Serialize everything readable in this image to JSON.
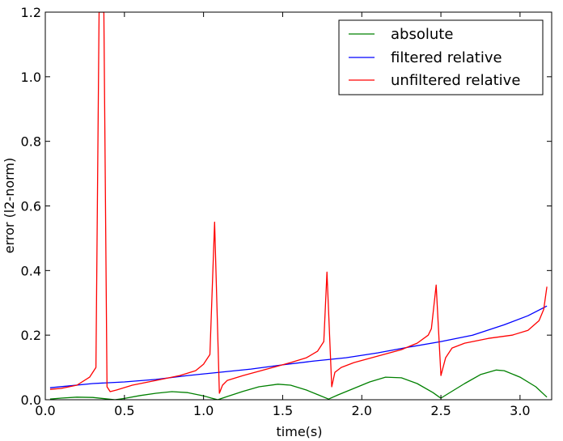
{
  "chart_data": {
    "type": "line",
    "title": "",
    "xlabel": "time(s)",
    "ylabel": "error (l2-norm)",
    "xlim": [
      0.0,
      3.2
    ],
    "ylim": [
      0.0,
      1.2
    ],
    "xticks": [
      "0.0",
      "0.5",
      "1.0",
      "1.5",
      "2.0",
      "2.5",
      "3.0"
    ],
    "yticks": [
      "0.0",
      "0.2",
      "0.4",
      "0.6",
      "0.8",
      "1.0",
      "1.2"
    ],
    "grid": false,
    "legend_position": "top-right",
    "series": [
      {
        "name": "absolute",
        "color": "#008000",
        "points": [
          [
            0.03,
            0.002
          ],
          [
            0.1,
            0.005
          ],
          [
            0.2,
            0.008
          ],
          [
            0.3,
            0.007
          ],
          [
            0.38,
            0.003
          ],
          [
            0.44,
            0.0
          ],
          [
            0.5,
            0.004
          ],
          [
            0.6,
            0.013
          ],
          [
            0.7,
            0.02
          ],
          [
            0.8,
            0.025
          ],
          [
            0.9,
            0.022
          ],
          [
            1.0,
            0.012
          ],
          [
            1.05,
            0.005
          ],
          [
            1.09,
            0.0
          ],
          [
            1.15,
            0.01
          ],
          [
            1.25,
            0.026
          ],
          [
            1.35,
            0.04
          ],
          [
            1.47,
            0.048
          ],
          [
            1.55,
            0.045
          ],
          [
            1.65,
            0.03
          ],
          [
            1.73,
            0.014
          ],
          [
            1.79,
            0.002
          ],
          [
            1.85,
            0.015
          ],
          [
            1.95,
            0.035
          ],
          [
            2.05,
            0.055
          ],
          [
            2.15,
            0.07
          ],
          [
            2.25,
            0.068
          ],
          [
            2.35,
            0.05
          ],
          [
            2.45,
            0.022
          ],
          [
            2.49,
            0.008
          ],
          [
            2.5,
            0.005
          ],
          [
            2.55,
            0.02
          ],
          [
            2.65,
            0.05
          ],
          [
            2.75,
            0.078
          ],
          [
            2.85,
            0.092
          ],
          [
            2.9,
            0.09
          ],
          [
            3.0,
            0.07
          ],
          [
            3.1,
            0.04
          ],
          [
            3.17,
            0.008
          ]
        ]
      },
      {
        "name": "filtered relative",
        "color": "#0000ff",
        "points": [
          [
            0.03,
            0.037
          ],
          [
            0.3,
            0.05
          ],
          [
            0.5,
            0.055
          ],
          [
            0.7,
            0.063
          ],
          [
            0.9,
            0.075
          ],
          [
            1.1,
            0.085
          ],
          [
            1.3,
            0.095
          ],
          [
            1.5,
            0.108
          ],
          [
            1.7,
            0.12
          ],
          [
            1.9,
            0.13
          ],
          [
            2.1,
            0.145
          ],
          [
            2.3,
            0.163
          ],
          [
            2.5,
            0.18
          ],
          [
            2.7,
            0.2
          ],
          [
            2.9,
            0.232
          ],
          [
            3.05,
            0.26
          ],
          [
            3.17,
            0.29
          ]
        ]
      },
      {
        "name": "unfiltered relative",
        "color": "#ff0000",
        "points": [
          [
            0.03,
            0.032
          ],
          [
            0.1,
            0.035
          ],
          [
            0.2,
            0.045
          ],
          [
            0.28,
            0.07
          ],
          [
            0.32,
            0.1
          ],
          [
            0.34,
            1.2
          ],
          [
            0.37,
            1.2
          ],
          [
            0.39,
            0.04
          ],
          [
            0.41,
            0.025
          ],
          [
            0.45,
            0.03
          ],
          [
            0.55,
            0.045
          ],
          [
            0.7,
            0.06
          ],
          [
            0.85,
            0.075
          ],
          [
            0.95,
            0.09
          ],
          [
            1.0,
            0.11
          ],
          [
            1.04,
            0.14
          ],
          [
            1.07,
            0.55
          ],
          [
            1.1,
            0.02
          ],
          [
            1.12,
            0.045
          ],
          [
            1.15,
            0.06
          ],
          [
            1.25,
            0.075
          ],
          [
            1.4,
            0.095
          ],
          [
            1.55,
            0.115
          ],
          [
            1.65,
            0.13
          ],
          [
            1.72,
            0.15
          ],
          [
            1.76,
            0.18
          ],
          [
            1.78,
            0.395
          ],
          [
            1.81,
            0.04
          ],
          [
            1.83,
            0.085
          ],
          [
            1.87,
            0.1
          ],
          [
            1.95,
            0.115
          ],
          [
            2.1,
            0.135
          ],
          [
            2.25,
            0.155
          ],
          [
            2.35,
            0.175
          ],
          [
            2.42,
            0.2
          ],
          [
            2.44,
            0.22
          ],
          [
            2.47,
            0.355
          ],
          [
            2.5,
            0.075
          ],
          [
            2.53,
            0.13
          ],
          [
            2.57,
            0.16
          ],
          [
            2.65,
            0.175
          ],
          [
            2.8,
            0.19
          ],
          [
            2.95,
            0.2
          ],
          [
            3.05,
            0.215
          ],
          [
            3.12,
            0.245
          ],
          [
            3.15,
            0.28
          ],
          [
            3.17,
            0.35
          ]
        ]
      }
    ]
  }
}
